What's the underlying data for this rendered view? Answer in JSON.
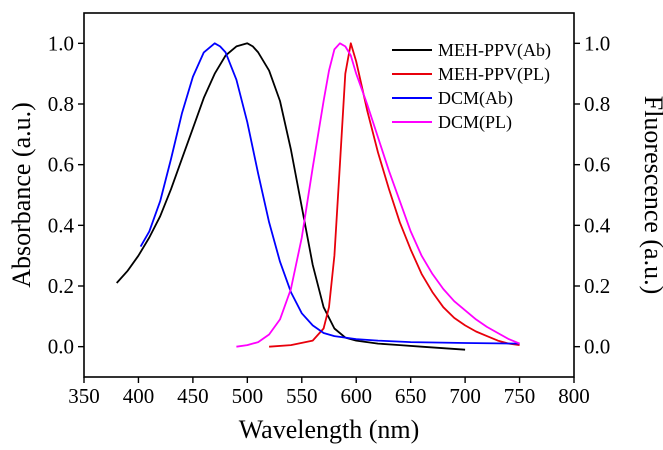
{
  "chart_data": {
    "type": "line",
    "title": "",
    "xlabel": "Wavelength (nm)",
    "ylabel": "Absorbance (a.u.)",
    "ylabel_right": "Fluorescence (a.u.)",
    "xlim": [
      350,
      800
    ],
    "ylim": [
      -0.1,
      1.1
    ],
    "ylim_right": [
      -0.1,
      1.1
    ],
    "x_ticks": [
      350,
      400,
      450,
      500,
      550,
      600,
      650,
      700,
      750,
      800
    ],
    "y_ticks": [
      0.0,
      0.2,
      0.4,
      0.6,
      0.8,
      1.0
    ],
    "y_tick_labels": [
      "0.0",
      "0.2",
      "0.4",
      "0.6",
      "0.8",
      "1.0"
    ],
    "y_ticks_right": [
      0.0,
      0.2,
      0.4,
      0.6,
      0.8,
      1.0
    ],
    "y_tick_labels_right": [
      "0.0",
      "0.2",
      "0.4",
      "0.6",
      "0.8",
      "1.0"
    ],
    "grid": false,
    "legend_position": "top-right",
    "series": [
      {
        "name": "MEH-PPV(Ab)",
        "color": "#000000",
        "axis": "left",
        "x": [
          380,
          390,
          400,
          410,
          420,
          430,
          440,
          450,
          460,
          470,
          480,
          490,
          500,
          505,
          510,
          520,
          530,
          540,
          550,
          560,
          570,
          580,
          590,
          600,
          620,
          640,
          660,
          680,
          700
        ],
        "y": [
          0.21,
          0.25,
          0.3,
          0.36,
          0.43,
          0.52,
          0.62,
          0.72,
          0.82,
          0.9,
          0.96,
          0.99,
          1.0,
          0.99,
          0.97,
          0.91,
          0.81,
          0.65,
          0.46,
          0.27,
          0.13,
          0.06,
          0.03,
          0.02,
          0.01,
          0.005,
          0.0,
          -0.005,
          -0.01
        ]
      },
      {
        "name": "MEH-PPV(PL)",
        "color": "#e8000b",
        "axis": "right",
        "x": [
          520,
          540,
          560,
          570,
          575,
          580,
          585,
          590,
          595,
          600,
          605,
          610,
          620,
          630,
          640,
          650,
          660,
          670,
          680,
          690,
          700,
          710,
          720,
          730,
          740,
          750
        ],
        "y": [
          0.0,
          0.005,
          0.02,
          0.06,
          0.13,
          0.3,
          0.6,
          0.9,
          1.0,
          0.94,
          0.86,
          0.78,
          0.64,
          0.52,
          0.41,
          0.32,
          0.24,
          0.18,
          0.13,
          0.095,
          0.07,
          0.05,
          0.035,
          0.02,
          0.01,
          0.005
        ]
      },
      {
        "name": "DCM(Ab)",
        "color": "#0000ff",
        "axis": "left",
        "x": [
          402,
          410,
          420,
          430,
          440,
          450,
          460,
          470,
          475,
          480,
          490,
          500,
          510,
          520,
          530,
          540,
          550,
          560,
          570,
          580,
          600,
          620,
          650,
          700,
          750
        ],
        "y": [
          0.33,
          0.38,
          0.48,
          0.62,
          0.77,
          0.89,
          0.97,
          1.0,
          0.99,
          0.97,
          0.88,
          0.74,
          0.57,
          0.41,
          0.28,
          0.18,
          0.11,
          0.07,
          0.045,
          0.035,
          0.025,
          0.02,
          0.015,
          0.012,
          0.01
        ]
      },
      {
        "name": "DCM(PL)",
        "color": "#ff00ff",
        "axis": "right",
        "x": [
          490,
          500,
          510,
          520,
          530,
          540,
          550,
          560,
          570,
          575,
          580,
          585,
          590,
          595,
          600,
          610,
          620,
          630,
          640,
          650,
          660,
          670,
          680,
          690,
          700,
          710,
          720,
          730,
          740,
          750
        ],
        "y": [
          0.0,
          0.005,
          0.015,
          0.04,
          0.09,
          0.19,
          0.36,
          0.59,
          0.81,
          0.91,
          0.98,
          1.0,
          0.99,
          0.96,
          0.9,
          0.8,
          0.69,
          0.58,
          0.48,
          0.38,
          0.3,
          0.24,
          0.19,
          0.15,
          0.12,
          0.09,
          0.065,
          0.045,
          0.025,
          0.01
        ]
      }
    ]
  }
}
